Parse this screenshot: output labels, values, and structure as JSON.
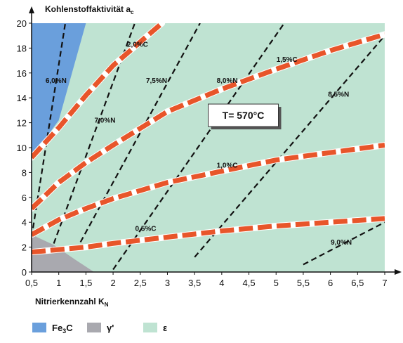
{
  "chart_data": {
    "type": "line",
    "title": "",
    "ylabel": "Kohlenstoffaktivität a",
    "ylabel_sub": "c",
    "xlabel": "Nitrierkennzahl K",
    "xlabel_sub": "N",
    "xlim": [
      0.5,
      7
    ],
    "ylim": [
      0,
      20
    ],
    "x_ticks": [
      0.5,
      1,
      1.5,
      2,
      2.5,
      3,
      3.5,
      4,
      4.5,
      5,
      5.5,
      6,
      6.5,
      7
    ],
    "x_tick_labels": [
      "0,5",
      "1",
      "1,5",
      "2",
      "2,5",
      "3",
      "3,5",
      "4",
      "4,5",
      "5",
      "5,5",
      "6",
      "6,5",
      "7"
    ],
    "y_ticks": [
      0,
      2,
      4,
      6,
      8,
      10,
      12,
      14,
      16,
      18,
      20
    ],
    "y_tick_labels": [
      "0",
      "2",
      "4",
      "6",
      "8",
      "10",
      "12",
      "14",
      "16",
      "18",
      "20"
    ],
    "annotation": "T= 570°C",
    "regions": [
      {
        "name": "Fe3C",
        "color": "#6a9fdc",
        "polygon": [
          [
            0.5,
            9.2
          ],
          [
            1.0,
            12.2
          ],
          [
            1.5,
            20
          ],
          [
            0.5,
            20
          ]
        ]
      },
      {
        "name": "gamma",
        "color": "#a9a9af",
        "polygon": [
          [
            0.5,
            0
          ],
          [
            0.5,
            3.0
          ],
          [
            0.9,
            2.2
          ],
          [
            1.3,
            1.0
          ],
          [
            1.65,
            0
          ]
        ]
      },
      {
        "name": "epsilon",
        "color": "#bfe3d2"
      }
    ],
    "carbon_series": [
      {
        "name": "0,5%C",
        "color": "#e8552a",
        "points": [
          [
            0.5,
            1.6
          ],
          [
            1,
            1.8
          ],
          [
            1.5,
            2.0
          ],
          [
            2,
            2.3
          ],
          [
            3,
            2.8
          ],
          [
            4,
            3.3
          ],
          [
            5,
            3.7
          ],
          [
            6,
            4.0
          ],
          [
            7,
            4.3
          ]
        ]
      },
      {
        "name": "1,0%C",
        "color": "#e8552a",
        "points": [
          [
            0.5,
            3.0
          ],
          [
            1,
            4.2
          ],
          [
            1.5,
            5.1
          ],
          [
            2,
            5.9
          ],
          [
            3,
            7.2
          ],
          [
            4,
            8.1
          ],
          [
            5,
            9.0
          ],
          [
            6,
            9.6
          ],
          [
            7,
            10.2
          ]
        ]
      },
      {
        "name": "1,5%C",
        "color": "#e8552a",
        "points": [
          [
            0.5,
            5.1
          ],
          [
            1,
            7.2
          ],
          [
            1.5,
            8.8
          ],
          [
            2,
            10.2
          ],
          [
            3,
            12.9
          ],
          [
            4,
            14.7
          ],
          [
            5,
            16.3
          ],
          [
            6,
            17.8
          ],
          [
            7,
            19.1
          ]
        ]
      },
      {
        "name": "2,0%C",
        "color": "#e8552a",
        "points": [
          [
            0.5,
            9.2
          ],
          [
            1,
            11.6
          ],
          [
            1.5,
            14.2
          ],
          [
            2,
            16.6
          ],
          [
            2.5,
            18.5
          ],
          [
            2.9,
            20
          ]
        ]
      }
    ],
    "series_labels": [
      {
        "text": "0,5%C",
        "x": 2.6,
        "y": 3.3
      },
      {
        "text": "1,0%C",
        "x": 4.1,
        "y": 8.4
      },
      {
        "text": "1,5%C",
        "x": 5.2,
        "y": 16.9
      },
      {
        "text": "2,0%C",
        "x": 2.45,
        "y": 18.1
      }
    ],
    "nitrogen_series": [
      {
        "name": "6,0%N",
        "color": "#111111",
        "points": [
          [
            0.5,
            2.8
          ],
          [
            1.12,
            20
          ]
        ]
      },
      {
        "name": "7,0%N",
        "color": "#111111",
        "points": [
          [
            0.85,
            1.6
          ],
          [
            2.4,
            20
          ]
        ]
      },
      {
        "name": "7,5%N",
        "color": "#111111",
        "points": [
          [
            1.4,
            2.4
          ],
          [
            3.6,
            20
          ]
        ]
      },
      {
        "name": "8,0%N",
        "color": "#111111",
        "points": [
          [
            2.0,
            0.2
          ],
          [
            5.15,
            20
          ]
        ]
      },
      {
        "name": "8,5%N",
        "color": "#111111",
        "points": [
          [
            3.5,
            1.2
          ],
          [
            7.0,
            19.0
          ]
        ]
      },
      {
        "name": "9,0%N",
        "color": "#111111",
        "points": [
          [
            5.5,
            0.6
          ],
          [
            7.0,
            4.0
          ]
        ]
      }
    ],
    "nitrogen_labels": [
      {
        "text": "6,0%N",
        "x": 0.95,
        "y": 15.2
      },
      {
        "text": "7,0%N",
        "x": 1.85,
        "y": 12.0
      },
      {
        "text": "7,5%N",
        "x": 2.8,
        "y": 15.2
      },
      {
        "text": "8,0%N",
        "x": 4.1,
        "y": 15.2
      },
      {
        "text": "8,5%N",
        "x": 6.15,
        "y": 14.1
      },
      {
        "text": "9,0%N",
        "x": 6.2,
        "y": 2.2
      }
    ],
    "legend": [
      {
        "label": "Fe",
        "sub": "3",
        "label_after": "C",
        "color": "#6a9fdc"
      },
      {
        "label": "γ'",
        "sub": "",
        "label_after": "",
        "color": "#a9a9af"
      },
      {
        "label": "ε",
        "sub": "",
        "label_after": "",
        "color": "#bfe3d2"
      }
    ]
  }
}
